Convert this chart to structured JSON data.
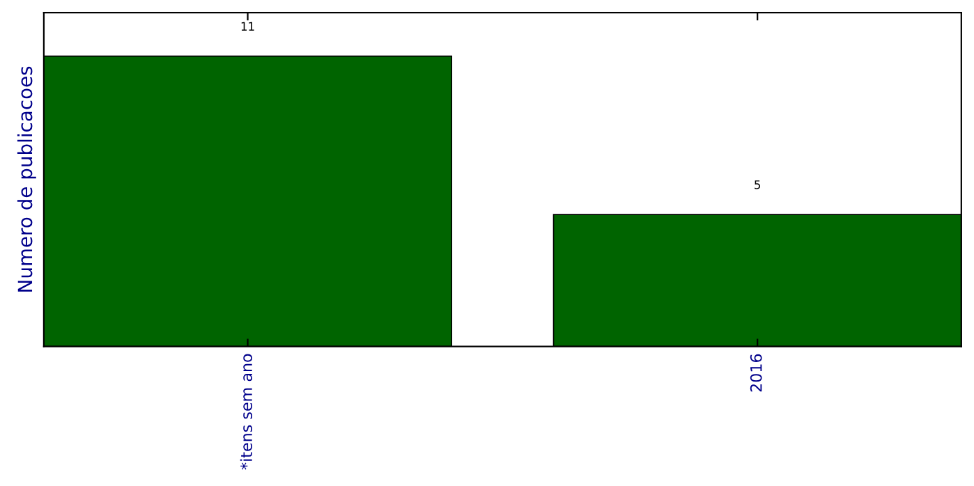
{
  "chart_data": {
    "type": "bar",
    "ylabel": "Numero de publicacoes",
    "categories": [
      "*itens sem ano",
      "2016"
    ],
    "values": [
      11,
      5
    ],
    "color": "#006400",
    "data_labels": true,
    "tick_labels": "x",
    "grid": false,
    "legend": false
  }
}
